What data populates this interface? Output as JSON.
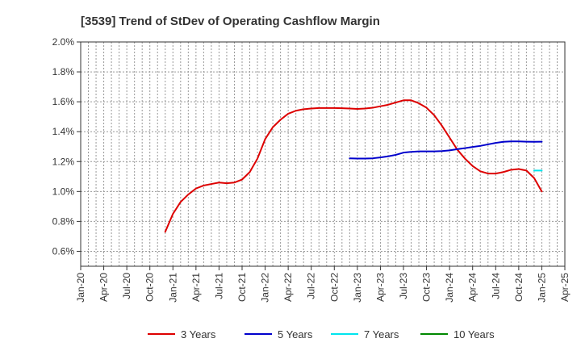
{
  "chart_data": {
    "type": "line",
    "title": "[3539]  Trend of StDev of Operating Cashflow Margin",
    "xlabel": "",
    "ylabel": "",
    "x_ticks": [
      "Jan-20",
      "Apr-20",
      "Jul-20",
      "Oct-20",
      "Jan-21",
      "Apr-21",
      "Jul-21",
      "Oct-21",
      "Jan-22",
      "Apr-22",
      "Jul-22",
      "Oct-22",
      "Jan-23",
      "Apr-23",
      "Jul-23",
      "Oct-23",
      "Jan-24",
      "Apr-24",
      "Jul-24",
      "Oct-24",
      "Jan-25",
      "Apr-25"
    ],
    "y_ticks": [
      "0.6%",
      "0.8%",
      "1.0%",
      "1.2%",
      "1.4%",
      "1.6%",
      "1.8%",
      "2.0%"
    ],
    "ylim": [
      0.5,
      2.0
    ],
    "y_unit": "%",
    "grid": true,
    "legend_position": "bottom",
    "series": [
      {
        "name": "3 Years",
        "color": "#dd0000",
        "x": [
          "2020-12",
          "2021-01",
          "2021-02",
          "2021-03",
          "2021-04",
          "2021-05",
          "2021-06",
          "2021-07",
          "2021-08",
          "2021-09",
          "2021-10",
          "2021-11",
          "2021-12",
          "2022-01",
          "2022-02",
          "2022-03",
          "2022-04",
          "2022-05",
          "2022-06",
          "2022-07",
          "2022-08",
          "2022-09",
          "2022-10",
          "2022-11",
          "2022-12",
          "2023-01",
          "2023-02",
          "2023-03",
          "2023-04",
          "2023-05",
          "2023-06",
          "2023-07",
          "2023-08",
          "2023-09",
          "2023-10",
          "2023-11",
          "2023-12",
          "2024-01",
          "2024-02",
          "2024-03",
          "2024-04",
          "2024-05",
          "2024-06",
          "2024-07",
          "2024-08",
          "2024-09",
          "2024-10",
          "2024-11",
          "2024-12",
          "2025-01"
        ],
        "values": [
          0.73,
          0.85,
          0.93,
          0.98,
          1.02,
          1.04,
          1.05,
          1.06,
          1.055,
          1.06,
          1.08,
          1.13,
          1.22,
          1.35,
          1.43,
          1.48,
          1.52,
          1.54,
          1.55,
          1.555,
          1.558,
          1.558,
          1.558,
          1.557,
          1.555,
          1.552,
          1.555,
          1.56,
          1.57,
          1.58,
          1.595,
          1.61,
          1.61,
          1.59,
          1.56,
          1.51,
          1.44,
          1.36,
          1.28,
          1.22,
          1.17,
          1.135,
          1.12,
          1.12,
          1.13,
          1.145,
          1.15,
          1.14,
          1.09,
          1.0
        ]
      },
      {
        "name": "5 Years",
        "color": "#0000cc",
        "x": [
          "2022-12",
          "2023-01",
          "2023-02",
          "2023-03",
          "2023-04",
          "2023-05",
          "2023-06",
          "2023-07",
          "2023-08",
          "2023-09",
          "2023-10",
          "2023-11",
          "2023-12",
          "2024-01",
          "2024-02",
          "2024-03",
          "2024-04",
          "2024-05",
          "2024-06",
          "2024-07",
          "2024-08",
          "2024-09",
          "2024-10",
          "2024-11",
          "2024-12",
          "2025-01"
        ],
        "values": [
          1.222,
          1.22,
          1.22,
          1.222,
          1.228,
          1.235,
          1.245,
          1.26,
          1.265,
          1.268,
          1.268,
          1.268,
          1.27,
          1.275,
          1.283,
          1.29,
          1.298,
          1.305,
          1.315,
          1.325,
          1.332,
          1.335,
          1.335,
          1.333,
          1.332,
          1.333
        ]
      },
      {
        "name": "7 Years",
        "color": "#00e5ee",
        "x": [
          "2024-12",
          "2025-01"
        ],
        "values": [
          1.14,
          1.14
        ]
      },
      {
        "name": "10 Years",
        "color": "#008800",
        "x": [],
        "values": []
      }
    ]
  }
}
